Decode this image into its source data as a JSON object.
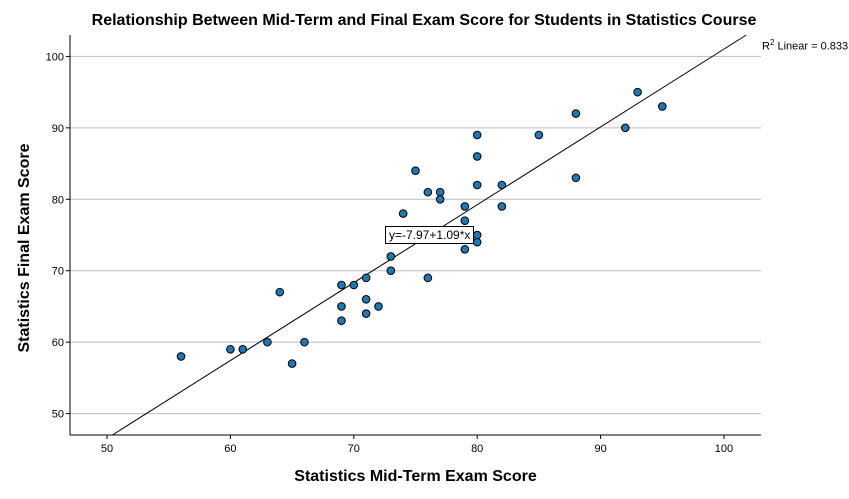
{
  "chart_data": {
    "type": "scatter",
    "title": "Relationship Between Mid-Term and Final Exam Score for Students in Statistics Course",
    "xlabel": "Statistics Mid-Term Exam Score",
    "ylabel": "Statistics Final Exam Score",
    "xlim": [
      47,
      103
    ],
    "ylim": [
      47,
      103
    ],
    "xticks": [
      50,
      60,
      70,
      80,
      90,
      100
    ],
    "yticks": [
      50,
      60,
      70,
      80,
      90,
      100
    ],
    "grid": "horizontal",
    "point_color": "#1f77b4",
    "fit": {
      "intercept": -7.97,
      "slope": 1.09,
      "equation": "y=-7.97+1.09*x",
      "r2_prefix": "R",
      "r2_sup": "2",
      "r2_text": " Linear = 0.833"
    },
    "points": [
      {
        "x": 56,
        "y": 58
      },
      {
        "x": 60,
        "y": 59
      },
      {
        "x": 61,
        "y": 59
      },
      {
        "x": 63,
        "y": 60
      },
      {
        "x": 64,
        "y": 67
      },
      {
        "x": 65,
        "y": 57
      },
      {
        "x": 66,
        "y": 60
      },
      {
        "x": 69,
        "y": 68
      },
      {
        "x": 69,
        "y": 65
      },
      {
        "x": 69,
        "y": 63
      },
      {
        "x": 70,
        "y": 68
      },
      {
        "x": 71,
        "y": 69
      },
      {
        "x": 71,
        "y": 66
      },
      {
        "x": 71,
        "y": 64
      },
      {
        "x": 72,
        "y": 65
      },
      {
        "x": 73,
        "y": 72
      },
      {
        "x": 73,
        "y": 70
      },
      {
        "x": 74,
        "y": 78
      },
      {
        "x": 75,
        "y": 84
      },
      {
        "x": 76,
        "y": 81
      },
      {
        "x": 76,
        "y": 69
      },
      {
        "x": 77,
        "y": 81
      },
      {
        "x": 77,
        "y": 80
      },
      {
        "x": 79,
        "y": 79
      },
      {
        "x": 79,
        "y": 77
      },
      {
        "x": 79,
        "y": 73
      },
      {
        "x": 80,
        "y": 89
      },
      {
        "x": 80,
        "y": 86
      },
      {
        "x": 80,
        "y": 82
      },
      {
        "x": 80,
        "y": 75
      },
      {
        "x": 80,
        "y": 74
      },
      {
        "x": 82,
        "y": 82
      },
      {
        "x": 82,
        "y": 79
      },
      {
        "x": 85,
        "y": 89
      },
      {
        "x": 88,
        "y": 92
      },
      {
        "x": 88,
        "y": 83
      },
      {
        "x": 92,
        "y": 90
      },
      {
        "x": 93,
        "y": 95
      },
      {
        "x": 95,
        "y": 93
      }
    ]
  }
}
